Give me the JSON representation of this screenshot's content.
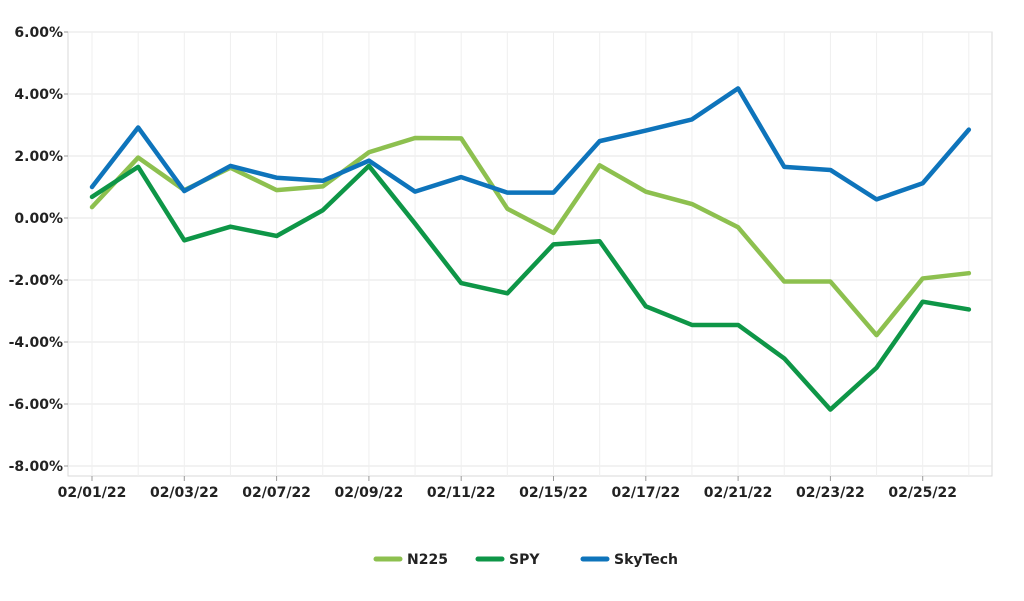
{
  "chart_data": {
    "type": "line",
    "title": "",
    "xlabel": "",
    "ylabel": "",
    "ylim": [
      -0.08,
      0.06
    ],
    "y_ticks": [
      0.06,
      0.04,
      0.02,
      0.0,
      -0.02,
      -0.04,
      -0.06,
      -0.08
    ],
    "y_tick_labels": [
      "6.00%",
      "4.00%",
      "2.00%",
      "0.00%",
      "-2.00%",
      "-4.00%",
      "-6.00%",
      "-8.00%"
    ],
    "x_tick_labels": [
      "02/01/22",
      "02/03/22",
      "02/07/22",
      "02/09/22",
      "02/11/22",
      "02/15/22",
      "02/17/22",
      "02/21/22",
      "02/23/22",
      "02/25/22"
    ],
    "x_tick_index_step": 2,
    "grid": true,
    "legend_position": "bottom-center",
    "points_count": 20,
    "series": [
      {
        "name": "N225",
        "color": "#8DC04F",
        "values": [
          0.0035,
          0.0195,
          0.009,
          0.0162,
          0.009,
          0.0102,
          0.0212,
          0.0258,
          0.0257,
          0.003,
          -0.0048,
          0.017,
          0.0085,
          0.0045,
          -0.003,
          -0.0205,
          -0.0205,
          -0.0378,
          -0.0195,
          -0.0178
        ]
      },
      {
        "name": "SPY",
        "color": "#0E9647",
        "values": [
          0.0068,
          0.0165,
          -0.0072,
          -0.0028,
          -0.0058,
          0.0025,
          0.0168,
          -0.0018,
          -0.021,
          -0.0243,
          -0.0085,
          -0.0075,
          -0.0285,
          -0.0345,
          -0.0345,
          -0.0453,
          -0.0618,
          -0.0483,
          -0.027,
          -0.0295
        ]
      },
      {
        "name": "SkyTech",
        "color": "#0E74BB",
        "values": [
          0.01,
          0.0292,
          0.0087,
          0.0168,
          0.013,
          0.012,
          0.0185,
          0.0085,
          0.0132,
          0.0082,
          0.0082,
          0.0248,
          0.0282,
          0.0318,
          0.0418,
          0.0165,
          0.0155,
          0.006,
          0.0112,
          0.0285
        ]
      }
    ]
  }
}
